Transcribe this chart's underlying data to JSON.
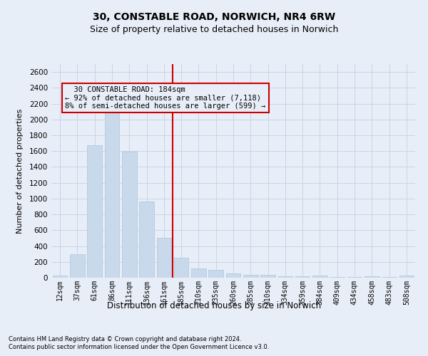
{
  "title1": "30, CONSTABLE ROAD, NORWICH, NR4 6RW",
  "title2": "Size of property relative to detached houses in Norwich",
  "xlabel": "Distribution of detached houses by size in Norwich",
  "ylabel": "Number of detached properties",
  "footer1": "Contains HM Land Registry data © Crown copyright and database right 2024.",
  "footer2": "Contains public sector information licensed under the Open Government Licence v3.0.",
  "annotation_line1": "  30 CONSTABLE ROAD: 184sqm  ",
  "annotation_line2": "← 92% of detached houses are smaller (7,118)",
  "annotation_line3": "8% of semi-detached houses are larger (599) →",
  "bar_color": "#c8d9eb",
  "bar_edge_color": "#b0c4de",
  "vline_color": "#cc0000",
  "categories": [
    "12sqm",
    "37sqm",
    "61sqm",
    "86sqm",
    "111sqm",
    "136sqm",
    "161sqm",
    "185sqm",
    "210sqm",
    "235sqm",
    "260sqm",
    "285sqm",
    "310sqm",
    "334sqm",
    "359sqm",
    "384sqm",
    "409sqm",
    "434sqm",
    "458sqm",
    "483sqm",
    "508sqm"
  ],
  "values": [
    25,
    300,
    1670,
    2150,
    1590,
    960,
    500,
    250,
    120,
    100,
    50,
    40,
    35,
    20,
    15,
    25,
    10,
    5,
    20,
    5,
    25
  ],
  "ylim": [
    0,
    2700
  ],
  "yticks": [
    0,
    200,
    400,
    600,
    800,
    1000,
    1200,
    1400,
    1600,
    1800,
    2000,
    2200,
    2400,
    2600
  ],
  "grid_color": "#c8d4e8",
  "bg_color": "#e8eef8"
}
